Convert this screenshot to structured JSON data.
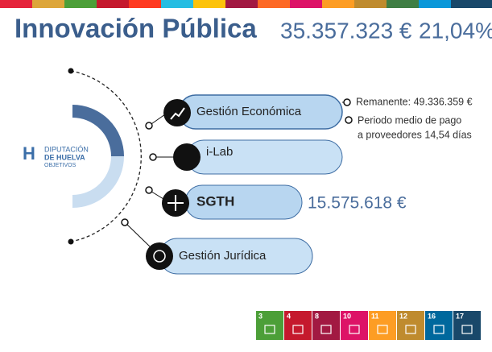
{
  "header": {
    "title": "Innovación Pública",
    "amount": "35.357.323 €",
    "share": "21,04%"
  },
  "logo": {
    "line1": "DIPUTACIÓN",
    "line2": "DE HUELVA",
    "line3": "OBJETIVOS"
  },
  "items": [
    {
      "label": "Gestión Económica"
    },
    {
      "label": "i-Lab"
    },
    {
      "label": "SGTH",
      "amount": "15.575.618 €"
    },
    {
      "label": "Gestión Jurídica"
    }
  ],
  "notes": [
    "Remanente: 49.336.359 €",
    "Periodo medio de pago",
    "a proveedores 14,54 días"
  ],
  "sdgs": [
    "3",
    "4",
    "8",
    "10",
    "11",
    "12",
    "16",
    "17"
  ]
}
